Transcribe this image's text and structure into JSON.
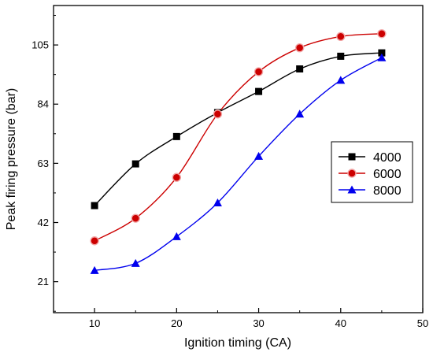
{
  "chart_data": {
    "type": "line",
    "xlabel": "Ignition timing (CA)",
    "ylabel": "Peak firing pressure (bar)",
    "xlim": [
      5,
      50
    ],
    "ylim": [
      10,
      119
    ],
    "x_ticks": [
      10,
      20,
      30,
      40,
      50
    ],
    "y_ticks": [
      21,
      42,
      63,
      84,
      105
    ],
    "x_ticks_label": [
      "10",
      "20",
      "30",
      "40",
      "50"
    ],
    "y_ticks_label": [
      "21",
      "42",
      "63",
      "84",
      "105"
    ],
    "grid": false,
    "legend_position": "right",
    "x": [
      10,
      15,
      20,
      25,
      30,
      35,
      40,
      45
    ],
    "series": [
      {
        "name": "4000",
        "values": [
          48,
          62.8,
          72.5,
          81,
          88.5,
          96.5,
          101,
          102.2
        ],
        "color": "#000000",
        "marker": "square"
      },
      {
        "name": "6000",
        "values": [
          35.5,
          43.5,
          58,
          80.5,
          95.5,
          104,
          108,
          109
        ],
        "color": "#cc0000",
        "marker": "circle"
      },
      {
        "name": "8000",
        "values": [
          25,
          27.5,
          37,
          49,
          65.5,
          80.5,
          92.5,
          100.5
        ],
        "color": "#0000ee",
        "marker": "triangle"
      }
    ]
  }
}
